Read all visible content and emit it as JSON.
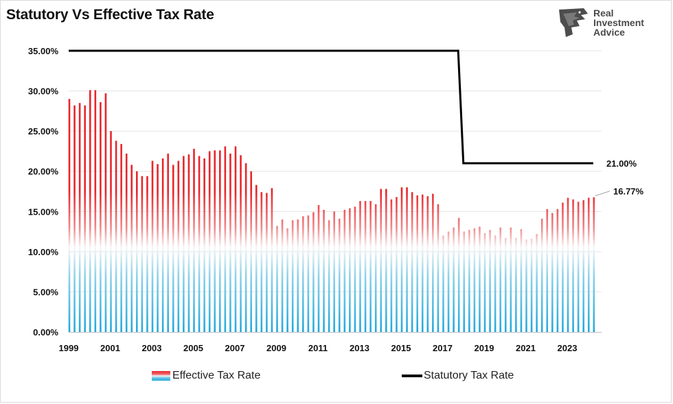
{
  "title": "Statutory Vs Effective Tax Rate",
  "logo": {
    "line1": "Real",
    "line2": "Investment",
    "line3": "Advice",
    "icon": "eagle-head-icon"
  },
  "colors": {
    "bar_top": "#e8262a",
    "bar_mid": "#f5f5f5",
    "bar_bottom": "#22a8dc",
    "statutory_line": "#000000"
  },
  "chart_data": {
    "type": "bar",
    "title": "Statutory Vs Effective Tax Rate",
    "ylim": [
      0,
      35
    ],
    "y_ticks": [
      "0.00%",
      "5.00%",
      "10.00%",
      "15.00%",
      "20.00%",
      "25.00%",
      "30.00%",
      "35.00%"
    ],
    "x_ticks": [
      "1999",
      "2001",
      "2003",
      "2005",
      "2007",
      "2009",
      "2011",
      "2013",
      "2015",
      "2017",
      "2019",
      "2021",
      "2023"
    ],
    "x_start_year": 1999,
    "periods_per_year": 4,
    "series": [
      {
        "name": "Effective Tax Rate",
        "kind": "bar",
        "values": [
          29.0,
          28.2,
          28.5,
          28.2,
          30.1,
          30.1,
          28.6,
          29.7,
          25.0,
          23.8,
          23.4,
          22.2,
          20.8,
          20.0,
          19.4,
          19.4,
          21.3,
          20.9,
          21.6,
          22.2,
          20.8,
          21.3,
          21.9,
          22.1,
          22.8,
          21.9,
          21.6,
          22.5,
          22.6,
          22.6,
          23.1,
          22.2,
          23.1,
          22.0,
          21.0,
          20.0,
          18.3,
          17.4,
          17.3,
          17.9,
          13.2,
          14.0,
          12.9,
          13.9,
          14.0,
          14.4,
          14.5,
          14.9,
          15.8,
          15.2,
          13.9,
          15.0,
          14.1,
          15.2,
          15.4,
          15.6,
          16.3,
          16.3,
          16.3,
          15.9,
          17.8,
          17.8,
          16.5,
          16.8,
          18.0,
          18.0,
          17.4,
          17.0,
          17.1,
          16.9,
          17.2,
          15.9,
          12.0,
          12.5,
          13.0,
          14.2,
          12.5,
          12.7,
          12.9,
          13.1,
          12.3,
          12.7,
          12.0,
          13.0,
          11.7,
          13.0,
          11.7,
          12.8,
          11.5,
          11.6,
          12.2,
          14.1,
          15.3,
          14.8,
          15.3,
          16.1,
          16.7,
          16.5,
          16.2,
          16.4,
          16.7,
          16.77
        ],
        "last_label": "16.77%"
      },
      {
        "name": "Statutory Tax Rate",
        "kind": "line",
        "points": [
          [
            1999.0,
            35.0
          ],
          [
            2017.75,
            35.0
          ],
          [
            2018.0,
            21.0
          ],
          [
            2024.25,
            21.0
          ]
        ],
        "last_label": "21.00%"
      }
    ],
    "legend": {
      "position": "bottom",
      "entries": [
        "Effective Tax Rate",
        "Statutory Tax Rate"
      ]
    }
  }
}
